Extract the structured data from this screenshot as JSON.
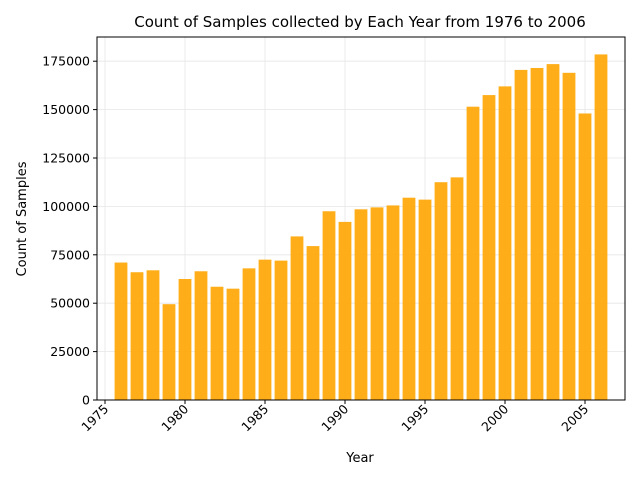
{
  "chart_data": {
    "type": "bar",
    "title": "Count of Samples collected by Each Year from 1976 to 2006",
    "xlabel": "Year",
    "ylabel": "Count of Samples",
    "bar_color": "#FFA500",
    "bar_opacity": 0.9,
    "grid": true,
    "x": [
      1976,
      1977,
      1978,
      1979,
      1980,
      1981,
      1982,
      1983,
      1984,
      1985,
      1986,
      1987,
      1988,
      1989,
      1990,
      1991,
      1992,
      1993,
      1994,
      1995,
      1996,
      1997,
      1998,
      1999,
      2000,
      2001,
      2002,
      2003,
      2004,
      2005,
      2006
    ],
    "values": [
      71000,
      66000,
      67000,
      49500,
      62500,
      66500,
      58500,
      57500,
      68000,
      72500,
      72000,
      84500,
      79500,
      97500,
      92000,
      98500,
      99500,
      100500,
      104500,
      103500,
      112500,
      115000,
      151500,
      157500,
      162000,
      170500,
      171500,
      173500,
      169000,
      148000,
      178500
    ],
    "xlim": [
      1974.5,
      2007.5
    ],
    "ylim": [
      0,
      187500
    ],
    "xticks": [
      1975,
      1980,
      1985,
      1990,
      1995,
      2000,
      2005
    ],
    "xtick_labels": [
      "1975",
      "1980",
      "1985",
      "1990",
      "1995",
      "2000",
      "2005"
    ],
    "yticks": [
      0,
      25000,
      50000,
      75000,
      100000,
      125000,
      150000,
      175000
    ],
    "ytick_labels": [
      "0",
      "25000",
      "50000",
      "75000",
      "100000",
      "125000",
      "150000",
      "175000"
    ],
    "xtick_rotation_deg": 45
  }
}
